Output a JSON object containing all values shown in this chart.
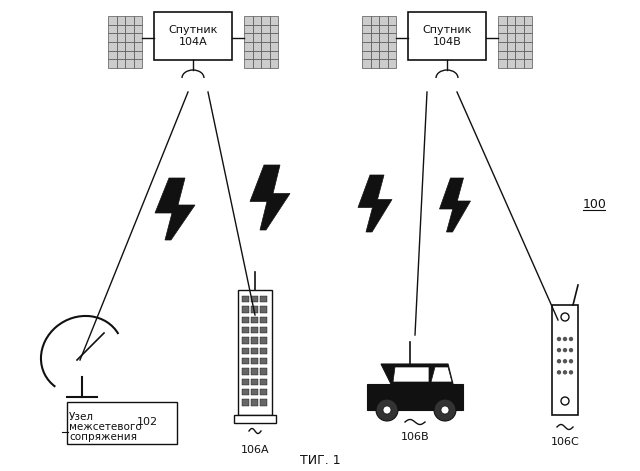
{
  "title": "ΤИГ. 1",
  "bg_color": "#ffffff",
  "label_100": "100",
  "label_102": "102",
  "satellite_A_label": "Спутник\n104А",
  "satellite_B_label": "Спутник\n104В",
  "node_label1": "Узел",
  "node_label2": "межсетевого",
  "node_label3": "сопряжения",
  "terminal_A": "106А",
  "terminal_B": "106В",
  "terminal_C": "106С",
  "fig_label": "ΤИГ. 1"
}
